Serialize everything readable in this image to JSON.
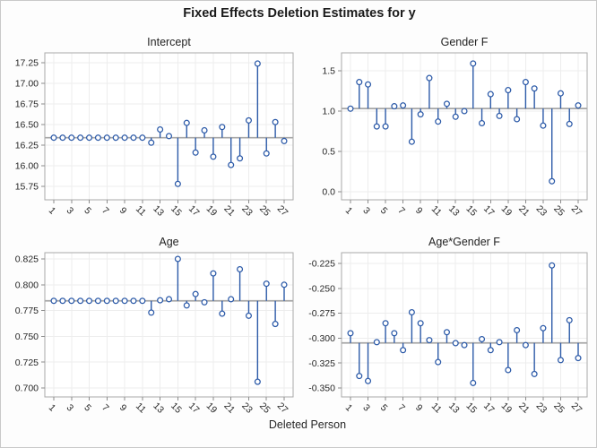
{
  "figure": {
    "title": "Fixed Effects Deletion Estimates for y",
    "xlabel": "Deleted Person"
  },
  "colors": {
    "stem": "#2c5aa8",
    "marker_fill": "#ffffff",
    "reference_line": "#a6a6a6",
    "gridline": "#ededed",
    "panel_border": "#a9a9a9",
    "tick": "#8c8c8c",
    "text": "#262626",
    "background": "#fdfdfd",
    "panel_background": "#ffffff"
  },
  "chart_data": [
    {
      "type": "stem",
      "title": "Intercept",
      "reference_line": 16.3406,
      "x": [
        1,
        2,
        3,
        4,
        5,
        6,
        7,
        8,
        9,
        10,
        11,
        12,
        13,
        14,
        15,
        16,
        17,
        18,
        19,
        20,
        21,
        22,
        23,
        24,
        25,
        26,
        27
      ],
      "values": [
        16.3406,
        16.3406,
        16.3406,
        16.3406,
        16.3406,
        16.3406,
        16.3406,
        16.3406,
        16.3406,
        16.3406,
        16.3406,
        16.28,
        16.44,
        16.36,
        15.78,
        16.52,
        16.16,
        16.43,
        16.11,
        16.47,
        16.01,
        16.09,
        16.55,
        17.24,
        16.15,
        16.53,
        16.3
      ],
      "yticks": [
        "17.25",
        "17.00",
        "16.75",
        "16.50",
        "16.25",
        "16.00",
        "15.75"
      ],
      "xticks": [
        1,
        3,
        5,
        7,
        9,
        11,
        13,
        15,
        17,
        19,
        21,
        23,
        25,
        27
      ],
      "ylim": [
        15.587,
        17.37
      ]
    },
    {
      "type": "stem",
      "title": "Gender F",
      "reference_line": 1.0321,
      "x": [
        1,
        2,
        3,
        4,
        5,
        6,
        7,
        8,
        9,
        10,
        11,
        12,
        13,
        14,
        15,
        16,
        17,
        18,
        19,
        20,
        21,
        22,
        23,
        24,
        25,
        26,
        27
      ],
      "values": [
        1.03,
        1.36,
        1.33,
        0.81,
        0.81,
        1.06,
        1.07,
        0.62,
        0.96,
        1.41,
        0.87,
        1.09,
        0.93,
        1.0,
        1.59,
        0.85,
        1.21,
        0.94,
        1.26,
        0.9,
        1.36,
        1.28,
        0.82,
        0.13,
        1.22,
        0.84,
        1.07
      ],
      "yticks": [
        "1.5",
        "1.0",
        "0.5",
        "0.0"
      ],
      "xticks": [
        1,
        3,
        5,
        7,
        9,
        11,
        13,
        15,
        17,
        19,
        21,
        23,
        25,
        27
      ],
      "ylim": [
        -0.1,
        1.722
      ]
    },
    {
      "type": "stem",
      "title": "Age",
      "reference_line": 0.7844,
      "x": [
        1,
        2,
        3,
        4,
        5,
        6,
        7,
        8,
        9,
        10,
        11,
        12,
        13,
        14,
        15,
        16,
        17,
        18,
        19,
        20,
        21,
        22,
        23,
        24,
        25,
        26,
        27
      ],
      "values": [
        0.7844,
        0.7844,
        0.7844,
        0.7844,
        0.7844,
        0.7844,
        0.7844,
        0.7844,
        0.7844,
        0.7844,
        0.7844,
        0.773,
        0.785,
        0.786,
        0.825,
        0.78,
        0.791,
        0.783,
        0.811,
        0.772,
        0.786,
        0.815,
        0.77,
        0.706,
        0.801,
        0.762,
        0.8
      ],
      "yticks": [
        "0.825",
        "0.800",
        "0.775",
        "0.750",
        "0.725",
        "0.700"
      ],
      "xticks": [
        1,
        3,
        5,
        7,
        9,
        11,
        13,
        15,
        17,
        19,
        21,
        23,
        25,
        27
      ],
      "ylim": [
        0.6913,
        0.8311
      ]
    },
    {
      "type": "stem",
      "title": "Age*Gender F",
      "reference_line": -0.3048,
      "x": [
        1,
        2,
        3,
        4,
        5,
        6,
        7,
        8,
        9,
        10,
        11,
        12,
        13,
        14,
        15,
        16,
        17,
        18,
        19,
        20,
        21,
        22,
        23,
        24,
        25,
        26,
        27
      ],
      "values": [
        -0.295,
        -0.338,
        -0.343,
        -0.304,
        -0.285,
        -0.295,
        -0.312,
        -0.274,
        -0.285,
        -0.302,
        -0.324,
        -0.294,
        -0.305,
        -0.307,
        -0.345,
        -0.301,
        -0.312,
        -0.304,
        -0.332,
        -0.292,
        -0.307,
        -0.336,
        -0.29,
        -0.227,
        -0.322,
        -0.282,
        -0.32
      ],
      "yticks": [
        "-0.225",
        "-0.250",
        "-0.275",
        "-0.300",
        "-0.325",
        "-0.350"
      ],
      "xticks": [
        1,
        3,
        5,
        7,
        9,
        11,
        13,
        15,
        17,
        19,
        21,
        23,
        25,
        27
      ],
      "ylim": [
        -0.359,
        -0.2142
      ]
    }
  ]
}
